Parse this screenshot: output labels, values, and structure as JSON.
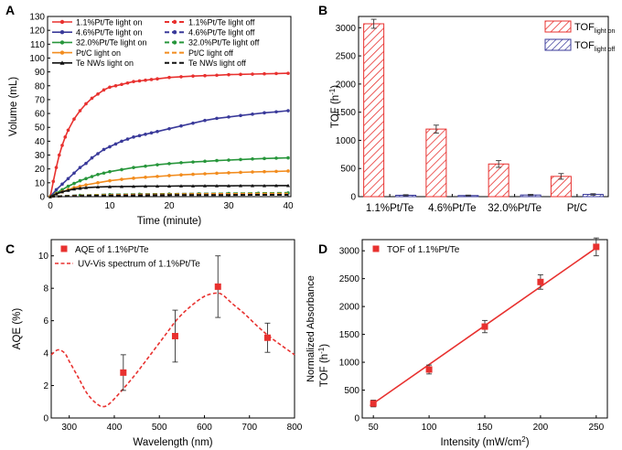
{
  "panels": {
    "A": {
      "letter": "A"
    },
    "B": {
      "letter": "B"
    },
    "C": {
      "letter": "C"
    },
    "D": {
      "letter": "D"
    }
  },
  "colors": {
    "red": "#e8312f",
    "blue": "#3a3a9a",
    "green": "#27963b",
    "orange": "#f28c1e",
    "black": "#111111"
  },
  "chart_data": [
    {
      "panel": "A",
      "type": "line",
      "xlabel": "Time (minute)",
      "ylabel": "Volume (mL)",
      "xlim": [
        0,
        40
      ],
      "ylim": [
        0,
        130
      ],
      "xticks": [
        "0",
        "10",
        "20",
        "30",
        "40"
      ],
      "yticks": [
        "0",
        "10",
        "20",
        "30",
        "40",
        "50",
        "60",
        "70",
        "80",
        "90",
        "100",
        "110",
        "120",
        "130"
      ],
      "legend_position": "top-left",
      "series": [
        {
          "name": "1.1%Pt/Te light on",
          "color": "#e8312f",
          "dash": false,
          "marker": "circle",
          "x": [
            0,
            0.5,
            1,
            1.5,
            2,
            2.5,
            3,
            4,
            5,
            6,
            7,
            8,
            9,
            10,
            11,
            12,
            13,
            14,
            15,
            16,
            17,
            18,
            20,
            22,
            24,
            26,
            28,
            30,
            32,
            34,
            36,
            38,
            40
          ],
          "y": [
            0,
            11,
            21,
            30,
            37,
            43,
            48,
            56,
            62,
            67,
            71,
            74,
            77,
            79,
            80,
            81,
            82,
            83,
            83.5,
            84,
            84.5,
            85,
            86,
            86.5,
            87,
            87.3,
            87.6,
            88,
            88.2,
            88.4,
            88.6,
            88.8,
            89
          ]
        },
        {
          "name": "1.1%Pt/Te light off",
          "color": "#e8312f",
          "dash": true,
          "marker": "circle",
          "x": [
            0,
            5,
            10,
            15,
            20,
            25,
            30,
            35,
            40
          ],
          "y": [
            0,
            0.8,
            1.2,
            1.5,
            1.8,
            2,
            2.2,
            2.4,
            2.5
          ]
        },
        {
          "name": "4.6%Pt/Te light on",
          "color": "#3a3a9a",
          "dash": false,
          "marker": "circle",
          "x": [
            0,
            1,
            2,
            3,
            4,
            5,
            6,
            7,
            8,
            9,
            10,
            11,
            12,
            13,
            14,
            15,
            16,
            17,
            18,
            20,
            22,
            24,
            26,
            28,
            30,
            32,
            34,
            36,
            38,
            40
          ],
          "y": [
            0,
            5,
            9,
            13,
            17,
            21,
            24,
            28,
            31,
            34,
            36,
            38,
            40,
            41.5,
            43,
            44,
            45,
            46,
            47,
            49,
            51,
            53,
            55,
            56.5,
            57.5,
            58.5,
            59.5,
            60.5,
            61.2,
            62
          ]
        },
        {
          "name": "4.6%Pt/Te light off",
          "color": "#3a3a9a",
          "dash": true,
          "marker": "circle",
          "x": [
            0,
            5,
            10,
            15,
            20,
            25,
            30,
            35,
            40
          ],
          "y": [
            0,
            1,
            1.5,
            1.8,
            2,
            2.1,
            2.2,
            2.3,
            2.4
          ]
        },
        {
          "name": "32.0%Pt/Te light on",
          "color": "#27963b",
          "dash": false,
          "marker": "circle",
          "x": [
            0,
            1,
            2,
            3,
            4,
            5,
            6,
            7,
            8,
            9,
            10,
            12,
            14,
            16,
            18,
            20,
            22,
            24,
            26,
            28,
            30,
            32,
            34,
            36,
            38,
            40
          ],
          "y": [
            0,
            2.5,
            5,
            7.5,
            9.5,
            11.5,
            13,
            14.5,
            16,
            17,
            18,
            19.5,
            21,
            22,
            23,
            23.8,
            24.5,
            25,
            25.5,
            26,
            26.4,
            26.8,
            27.2,
            27.5,
            27.8,
            28
          ]
        },
        {
          "name": "32.0%Pt/Te light off",
          "color": "#27963b",
          "dash": true,
          "marker": "circle",
          "x": [
            0,
            5,
            10,
            15,
            20,
            25,
            30,
            35,
            40
          ],
          "y": [
            0,
            1,
            1.5,
            1.8,
            2,
            2.2,
            2.4,
            2.6,
            2.8
          ]
        },
        {
          "name": "Pt/C light on",
          "color": "#f28c1e",
          "dash": false,
          "marker": "circle",
          "x": [
            0,
            1,
            2,
            3,
            4,
            5,
            6,
            8,
            10,
            12,
            14,
            16,
            18,
            20,
            22,
            24,
            26,
            28,
            30,
            32,
            34,
            36,
            38,
            40
          ],
          "y": [
            0,
            2,
            3.5,
            5,
            6.5,
            7.5,
            8.5,
            10,
            11.5,
            12.5,
            13.3,
            14,
            14.6,
            15.2,
            15.7,
            16.1,
            16.5,
            16.9,
            17.2,
            17.5,
            17.8,
            18,
            18.2,
            18.5
          ]
        },
        {
          "name": "Pt/C light off",
          "color": "#f28c1e",
          "dash": true,
          "marker": "none",
          "x": [
            0,
            5,
            10,
            15,
            20,
            25,
            30,
            35,
            40
          ],
          "y": [
            0,
            0.8,
            1.2,
            1.5,
            1.7,
            1.9,
            2,
            2.1,
            2.2
          ]
        },
        {
          "name": "Te NWs light on",
          "color": "#111111",
          "dash": false,
          "marker": "triangle",
          "x": [
            0,
            1,
            2,
            3,
            4,
            5,
            6,
            8,
            10,
            12,
            14,
            16,
            18,
            20,
            22,
            24,
            26,
            28,
            30,
            32,
            34,
            36,
            38,
            40
          ],
          "y": [
            0,
            2,
            3.5,
            4.5,
            5.5,
            6,
            6.5,
            7,
            7.2,
            7.3,
            7.4,
            7.5,
            7.6,
            7.6,
            7.7,
            7.7,
            7.8,
            7.8,
            7.8,
            7.9,
            7.9,
            7.9,
            8,
            8
          ]
        },
        {
          "name": "Te NWs light off",
          "color": "#111111",
          "dash": true,
          "marker": "none",
          "x": [
            0,
            5,
            10,
            15,
            20,
            25,
            30,
            35,
            40
          ],
          "y": [
            0,
            0.5,
            0.8,
            1,
            1.1,
            1.2,
            1.2,
            1.3,
            1.3
          ]
        }
      ]
    },
    {
      "panel": "B",
      "type": "bar",
      "ylabel_main": "TOF (h",
      "ylabel_sup": "-1",
      "ylabel_end": ")",
      "ylim": [
        0,
        3200
      ],
      "yticks": [
        "0",
        "500",
        "1000",
        "1500",
        "2000",
        "2500",
        "3000"
      ],
      "categories": [
        "1.1%Pt/Te",
        "4.6%Pt/Te",
        "32.0%Pt/Te",
        "Pt/C"
      ],
      "legend_position": "top-right",
      "series": [
        {
          "name": "TOF",
          "sub": "light on",
          "color": "#e8312f",
          "hatch": "red",
          "values": [
            3070,
            1200,
            580,
            360
          ],
          "errors": [
            80,
            70,
            60,
            50
          ]
        },
        {
          "name": "TOF",
          "sub": "light off",
          "color": "#3a3a9a",
          "hatch": "blue",
          "values": [
            25,
            20,
            30,
            40
          ],
          "errors": [
            10,
            8,
            10,
            12
          ]
        }
      ]
    },
    {
      "panel": "C",
      "type": "scatter",
      "xlabel": "Wavelength (nm)",
      "ylabel": "AQE (%)",
      "xlim": [
        260,
        800
      ],
      "ylim": [
        0,
        11
      ],
      "xticks": [
        "300",
        "400",
        "500",
        "600",
        "700",
        "800"
      ],
      "yticks": [
        "0",
        "2",
        "4",
        "6",
        "8",
        "10"
      ],
      "legend_position": "top-left",
      "series": [
        {
          "name": "AQE of 1.1%Pt/Te",
          "color": "#e8312f",
          "x": [
            420,
            535,
            630,
            740
          ],
          "y": [
            2.8,
            5.05,
            8.1,
            4.95
          ],
          "errors": [
            1.1,
            1.6,
            1.9,
            0.9
          ]
        },
        {
          "name": "UV-Vis spectrum of 1.1%Pt/Te",
          "color": "#e8312f",
          "dash": true,
          "x": [
            260,
            275,
            290,
            300,
            320,
            340,
            360,
            375,
            390,
            420,
            450,
            480,
            510,
            540,
            570,
            600,
            625,
            640,
            660,
            690,
            720,
            750,
            780,
            800
          ],
          "y": [
            3.9,
            4.2,
            4.0,
            3.5,
            2.5,
            1.5,
            0.9,
            0.7,
            0.9,
            1.8,
            2.8,
            3.9,
            5.0,
            6.1,
            6.9,
            7.5,
            7.7,
            7.6,
            7.1,
            6.4,
            5.6,
            4.9,
            4.3,
            3.9
          ]
        }
      ]
    },
    {
      "panel": "D",
      "type": "scatter",
      "xlabel_main": "Intensity (mW/cm",
      "xlabel_sup": "2",
      "xlabel_end": ")",
      "ylabel_main": "TOF (h",
      "ylabel_sup": "-1",
      "ylabel_end": ")",
      "ylabel_overlay": "Normalized Absorbance",
      "xlim": [
        40,
        260
      ],
      "ylim": [
        0,
        3200
      ],
      "xticks": [
        "50",
        "100",
        "150",
        "200",
        "250"
      ],
      "yticks": [
        "0",
        "500",
        "1000",
        "1500",
        "2000",
        "2500",
        "3000"
      ],
      "legend_position": "top-left",
      "series": [
        {
          "name": "TOF of 1.1%Pt/Te",
          "color": "#e8312f",
          "x": [
            50,
            100,
            150,
            200,
            250
          ],
          "y": [
            260,
            870,
            1640,
            2440,
            3070
          ],
          "errors": [
            60,
            80,
            110,
            130,
            160
          ],
          "fit": [
            [
              47,
              220
            ],
            [
              252,
              3080
            ]
          ]
        }
      ]
    }
  ]
}
